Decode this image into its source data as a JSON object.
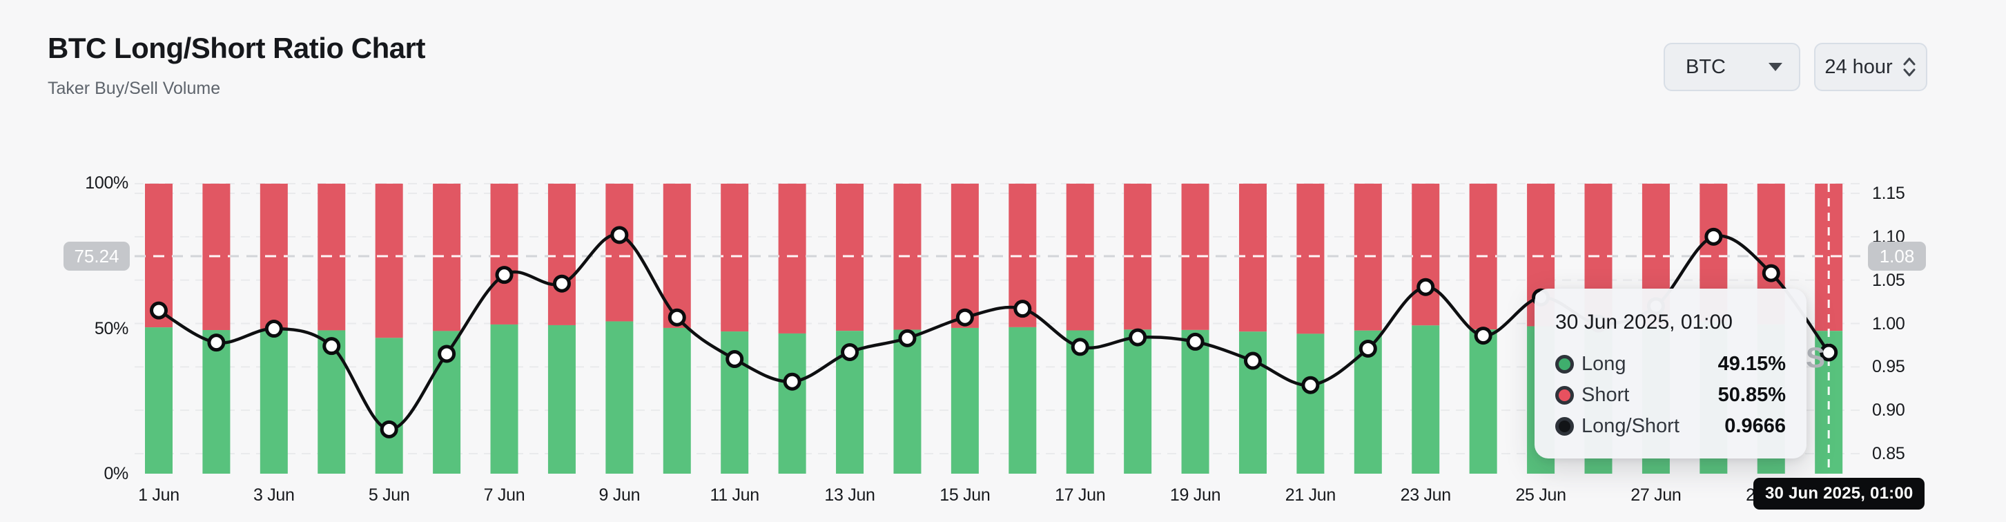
{
  "header": {
    "title": "BTC Long/Short Ratio Chart",
    "subtitle": "Taker Buy/Sell Volume"
  },
  "controls": {
    "symbol": "BTC",
    "interval": "24 hour"
  },
  "chart_data": {
    "type": "bar",
    "subtype": "stacked-100%-bars-with-line-overlay",
    "title": "BTC Long/Short Ratio Chart",
    "categories": [
      "1 Jun",
      "2 Jun",
      "3 Jun",
      "4 Jun",
      "5 Jun",
      "6 Jun",
      "7 Jun",
      "8 Jun",
      "9 Jun",
      "10 Jun",
      "11 Jun",
      "12 Jun",
      "13 Jun",
      "14 Jun",
      "15 Jun",
      "16 Jun",
      "17 Jun",
      "18 Jun",
      "19 Jun",
      "20 Jun",
      "21 Jun",
      "22 Jun",
      "23 Jun",
      "24 Jun",
      "25 Jun",
      "26 Jun",
      "27 Jun",
      "28 Jun",
      "29 Jun",
      "30 Jun"
    ],
    "x_tick_labels": [
      "1 Jun",
      "3 Jun",
      "5 Jun",
      "7 Jun",
      "9 Jun",
      "11 Jun",
      "13 Jun",
      "15 Jun",
      "17 Jun",
      "19 Jun",
      "21 Jun",
      "23 Jun",
      "25 Jun",
      "27 Jun",
      "29 Jun"
    ],
    "series": [
      {
        "name": "Long",
        "type": "bar",
        "unit": "%",
        "color": "#58c27d",
        "values": [
          50.37,
          49.44,
          49.85,
          49.34,
          46.75,
          49.11,
          51.36,
          51.12,
          52.43,
          50.17,
          48.95,
          48.27,
          49.16,
          49.57,
          50.17,
          50.42,
          49.32,
          49.6,
          49.47,
          48.9,
          48.16,
          49.26,
          51.03,
          49.65,
          50.74,
          50.0,
          50.5,
          52.38,
          51.41,
          49.15
        ]
      },
      {
        "name": "Short",
        "type": "bar",
        "unit": "%",
        "color": "#e15763",
        "values": [
          49.63,
          50.56,
          50.15,
          50.66,
          53.25,
          50.89,
          48.64,
          48.88,
          47.57,
          49.83,
          51.05,
          51.73,
          50.84,
          50.43,
          49.83,
          49.58,
          50.68,
          50.4,
          50.53,
          51.1,
          51.84,
          50.74,
          48.97,
          50.35,
          49.26,
          50.0,
          49.5,
          47.62,
          48.59,
          50.85
        ]
      },
      {
        "name": "Long/Short",
        "type": "line",
        "color": "#0e0f11",
        "values": [
          1.015,
          0.978,
          0.994,
          0.974,
          0.878,
          0.965,
          1.056,
          1.046,
          1.102,
          1.007,
          0.959,
          0.933,
          0.967,
          0.983,
          1.007,
          1.017,
          0.973,
          0.984,
          0.979,
          0.957,
          0.929,
          0.971,
          1.042,
          0.986,
          1.03,
          1.0,
          1.02,
          1.1,
          1.058,
          0.9666
        ]
      }
    ],
    "left_axis": {
      "ticks": [
        {
          "label": "0%",
          "value": 0
        },
        {
          "label": "50%",
          "value": 50
        },
        {
          "label": "100%",
          "value": 100
        }
      ],
      "range": [
        0,
        100
      ],
      "highlight_label": "75.24"
    },
    "right_axis": {
      "ticks": [
        {
          "label": "1.15",
          "value": 1.15
        },
        {
          "label": "1.10",
          "value": 1.1
        },
        {
          "label": "1.05",
          "value": 1.05
        },
        {
          "label": "1.00",
          "value": 1.0
        },
        {
          "label": "0.95",
          "value": 0.95
        },
        {
          "label": "0.90",
          "value": 0.9
        },
        {
          "label": "0.85",
          "value": 0.85
        }
      ],
      "range": [
        0.85,
        1.15
      ],
      "highlight_label": "1.08"
    },
    "grid": "horizontal-dashed",
    "legend_position": "none"
  },
  "tooltip": {
    "title": "30 Jun 2025, 01:00",
    "rows": [
      {
        "icon": "long-dot-icon",
        "label": "Long",
        "value": "49.15%",
        "color": "#3fae6d"
      },
      {
        "icon": "short-dot-icon",
        "label": "Short",
        "value": "50.85%",
        "color": "#e8515f"
      },
      {
        "icon": "ratio-dot-icon",
        "label": "Long/Short",
        "value": "0.9666",
        "color": "#121417"
      }
    ]
  },
  "crosshair_label": "30 Jun 2025, 01:00",
  "watermark": "S"
}
